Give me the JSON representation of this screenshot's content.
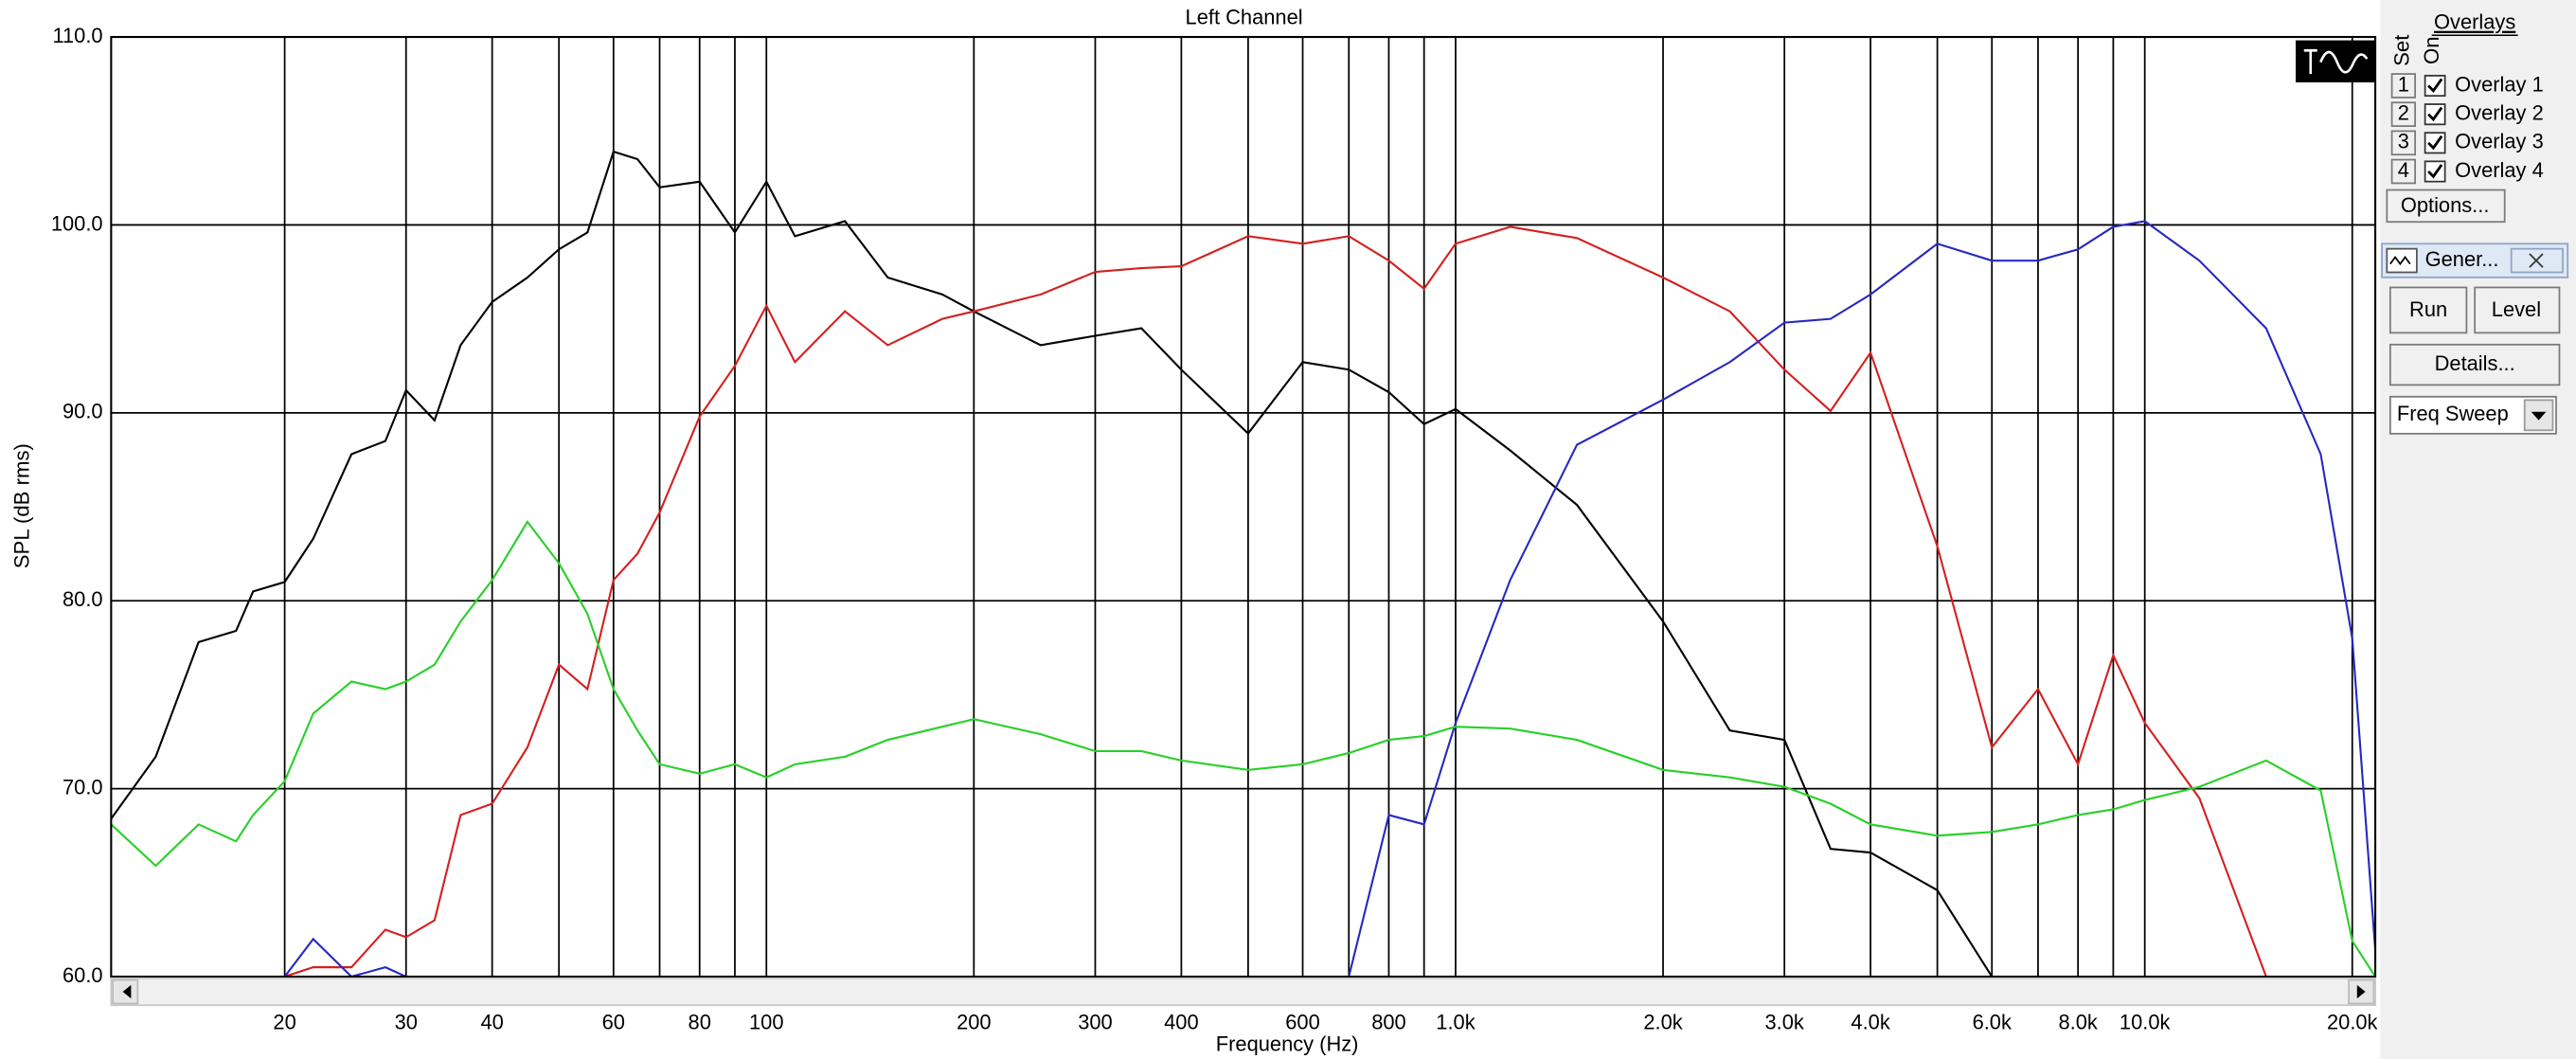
{
  "chart_data": {
    "type": "line",
    "title": "Left Channel",
    "xlabel": "Frequency (Hz)",
    "ylabel": "SPL (dB rms)",
    "xscale": "log",
    "grid": true,
    "xlim": [
      11.2,
      21600
    ],
    "ylim": [
      60,
      110
    ],
    "xticks": [
      20,
      30,
      40,
      60,
      80,
      100,
      200,
      300,
      400,
      600,
      800,
      {
        "value": 1000,
        "label": "1.0k"
      },
      {
        "value": 2000,
        "label": "2.0k"
      },
      {
        "value": 3000,
        "label": "3.0k"
      },
      {
        "value": 4000,
        "label": "4.0k"
      },
      {
        "value": 6000,
        "label": "6.0k"
      },
      {
        "value": 8000,
        "label": "8.0k"
      },
      {
        "value": 10000,
        "label": "10.0k"
      },
      {
        "value": 20000,
        "label": "20.0k"
      }
    ],
    "xminorticks": [
      50,
      70,
      90,
      500,
      700,
      900,
      5000,
      7000,
      9000
    ],
    "yticks": [
      {
        "value": 60,
        "label": "60.0"
      },
      {
        "value": 70,
        "label": "70.0"
      },
      {
        "value": 80,
        "label": "80.0"
      },
      {
        "value": 90,
        "label": "90.0"
      },
      {
        "value": 100,
        "label": "100.0"
      },
      {
        "value": 110,
        "label": "110.0"
      }
    ],
    "x": [
      11.2,
      13,
      15,
      17,
      18,
      20,
      22,
      25,
      28,
      30,
      33,
      36,
      40,
      45,
      50,
      55,
      60,
      65,
      70,
      80,
      90,
      100,
      110,
      130,
      150,
      180,
      200,
      250,
      300,
      350,
      400,
      500,
      600,
      700,
      800,
      900,
      1000,
      1200,
      1500,
      2000,
      2500,
      3000,
      3500,
      4000,
      5000,
      6000,
      7000,
      8000,
      9000,
      10000,
      12000,
      15000,
      18000,
      20000,
      21600
    ],
    "series": [
      {
        "name": "Overlay 1",
        "color": "#000000",
        "values": [
          68.4,
          71.7,
          77.8,
          78.4,
          80.5,
          81,
          83.3,
          87.8,
          88.5,
          91.2,
          89.6,
          93.6,
          95.9,
          97.2,
          98.7,
          99.6,
          103.9,
          103.5,
          102,
          102.3,
          99.6,
          102.3,
          99.4,
          100.2,
          97.2,
          96.3,
          95.4,
          93.6,
          94.1,
          94.5,
          92.3,
          88.9,
          92.7,
          92.3,
          91.1,
          89.4,
          90.2,
          88,
          85.1,
          78.9,
          73.1,
          72.6,
          66.8,
          66.6,
          64.6,
          60,
          60,
          60,
          60,
          60,
          60,
          60,
          60,
          60,
          60
        ]
      },
      {
        "name": "Overlay 2",
        "color": "#d42020",
        "values": [
          60,
          60,
          60,
          60,
          60,
          60,
          60.5,
          60.5,
          62.5,
          62.1,
          63,
          68.6,
          69.2,
          72.2,
          76.6,
          75.3,
          81.1,
          82.5,
          84.7,
          89.8,
          92.5,
          95.7,
          92.7,
          95.4,
          93.6,
          95,
          95.4,
          96.3,
          97.5,
          97.7,
          97.8,
          99.4,
          99,
          99.4,
          98.1,
          96.6,
          99,
          99.9,
          99.3,
          97.2,
          95.4,
          92.3,
          90.1,
          93.2,
          82.9,
          72.2,
          75.3,
          71.3,
          77.1,
          73.5,
          69.5,
          60,
          60,
          60,
          60
        ]
      },
      {
        "name": "Overlay 3",
        "color": "#2828c0",
        "values": [
          60,
          60,
          60,
          60,
          60,
          60,
          62,
          60,
          60.5,
          60,
          60,
          60,
          60,
          60,
          60,
          60,
          60,
          60,
          60,
          60,
          60,
          60,
          60,
          60,
          60,
          60,
          60,
          60,
          60,
          60,
          60,
          60,
          60,
          60,
          68.6,
          68.1,
          73.5,
          81.1,
          88.3,
          90.7,
          92.7,
          94.8,
          95,
          96.3,
          99,
          98.1,
          98.1,
          98.7,
          99.9,
          100.2,
          98.1,
          94.5,
          87.8,
          78,
          61.4
        ]
      },
      {
        "name": "Overlay 4",
        "color": "#28d028",
        "values": [
          68.1,
          65.9,
          68.1,
          67.2,
          68.6,
          70.4,
          74,
          75.7,
          75.3,
          75.7,
          76.6,
          78.9,
          81.1,
          84.2,
          82,
          79.3,
          75.3,
          73.1,
          71.3,
          70.8,
          71.3,
          70.6,
          71.3,
          71.7,
          72.6,
          73.3,
          73.7,
          72.9,
          72,
          72,
          71.5,
          71,
          71.3,
          71.9,
          72.6,
          72.8,
          73.3,
          73.2,
          72.6,
          71,
          70.6,
          70.1,
          69.2,
          68.1,
          67.5,
          67.7,
          68.1,
          68.6,
          68.9,
          69.4,
          70.1,
          71.5,
          69.9,
          61.9,
          60
        ]
      }
    ]
  },
  "panel": {
    "overlays_title": "Overlays",
    "set_label": "Set",
    "on_label": "On",
    "sets": [
      "1",
      "2",
      "3",
      "4"
    ],
    "options": "Options...",
    "generator": {
      "title": "Gener...",
      "run": "Run",
      "level": "Level",
      "details": "Details...",
      "mode": "Freq Sweep"
    }
  }
}
